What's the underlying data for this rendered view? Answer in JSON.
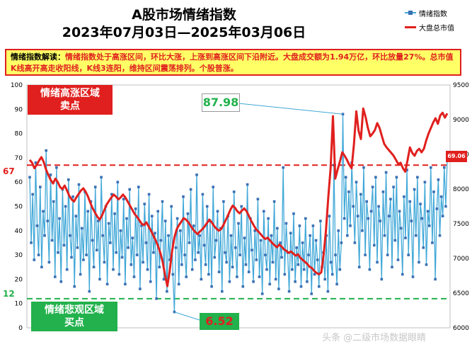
{
  "title_line1": "A股市场情绪指数",
  "title_line2": "2023年07月03日—2025年03月06日",
  "legend": {
    "series1": "情绪指数",
    "series2": "大盘总市值"
  },
  "interpretation": {
    "label": "情绪指数解读：",
    "text": "情绪指数处于高涨区间，环比大涨，上涨到高涨区间下沿附近。大盘成交额为1.94万亿，环比放量27%。总市值K线高开高走收阳线，K线3连阳，维持区间震荡排列。个股普涨。"
  },
  "zones": {
    "high_line1": "情绪高涨区域",
    "high_line2": "卖点",
    "low_line1": "情绪悲观区域",
    "low_line2": "买点"
  },
  "annotations": {
    "max": "87.98",
    "min": "6.52",
    "last": "69.06",
    "ref_high": "67",
    "ref_low": "12"
  },
  "watermark": "头条 @二级市场数据眼睛",
  "colors": {
    "sentiment": "#41a8d8",
    "marker": "#3a70b4",
    "marketcap": "#e0201e",
    "high_ref": "#e0201e",
    "low_ref": "#22b14c"
  },
  "chart_data": {
    "type": "line",
    "x_start": "2023-07-03",
    "x_end": "2025-03-06",
    "y_left": {
      "min": 0,
      "max": 100,
      "ticks": [
        "0",
        "10",
        "20",
        "30",
        "40",
        "50",
        "60",
        "70",
        "80",
        "90",
        "100"
      ]
    },
    "y_right": {
      "min": 6000,
      "max": 9500,
      "ticks": [
        "6000",
        "6500",
        "7000",
        "7500",
        "8000",
        "8500",
        "9000",
        "9500"
      ]
    },
    "reference_lines": [
      {
        "value": 67,
        "color": "#e0201e"
      },
      {
        "value": 12,
        "color": "#22b14c"
      }
    ],
    "series": [
      {
        "name": "情绪指数",
        "axis": "left",
        "values": [
          62,
          35,
          55,
          28,
          68,
          42,
          30,
          58,
          25,
          48,
          38,
          73,
          44,
          27,
          63,
          36,
          52,
          21,
          66,
          31,
          45,
          19,
          57,
          34,
          50,
          24,
          61,
          38,
          29,
          54,
          17,
          46,
          33,
          59,
          22,
          41,
          28,
          56,
          30,
          48,
          15,
          52,
          36,
          25,
          58,
          32,
          44,
          20,
          62,
          38,
          27,
          50,
          18,
          43,
          35,
          55,
          24,
          47,
          31,
          60,
          22,
          40,
          29,
          53,
          18,
          45,
          33,
          57,
          26,
          37,
          21,
          49,
          30,
          58,
          16,
          42,
          27,
          51,
          35,
          24,
          55,
          19,
          46,
          31,
          39,
          12,
          48,
          25,
          36,
          52,
          20,
          44,
          15,
          38,
          28,
          50,
          22,
          6.52,
          33,
          45,
          18,
          40,
          26,
          54,
          30,
          21,
          47,
          35,
          57,
          24,
          42,
          28,
          63,
          31,
          38,
          20,
          55,
          34,
          26,
          50,
          22,
          44,
          17,
          58,
          29,
          36,
          48,
          23,
          41,
          15,
          52,
          31,
          27,
          46,
          19,
          38,
          25,
          56,
          33,
          21,
          43,
          30,
          50,
          17,
          37,
          26,
          59,
          23,
          45,
          32,
          19,
          40,
          28,
          53,
          21,
          36,
          14,
          48,
          30,
          24,
          45,
          18,
          38,
          27,
          52,
          20,
          41,
          16,
          35,
          29,
          66,
          22,
          43,
          31,
          15,
          39,
          24,
          47,
          19,
          33,
          26,
          42,
          17,
          35,
          24,
          45,
          19,
          30,
          38,
          14,
          42,
          22,
          36,
          28,
          17,
          44,
          25,
          31,
          20,
          38,
          15,
          46,
          27,
          22,
          67,
          30,
          18,
          40,
          24,
          35,
          87.98,
          45,
          62,
          38,
          56,
          42,
          68,
          50,
          35,
          60,
          46,
          25,
          55,
          40,
          66,
          30,
          52,
          45,
          24,
          48,
          58,
          34,
          62,
          27,
          50,
          44,
          20,
          56,
          38,
          64,
          30,
          46,
          53,
          25,
          58,
          36,
          62,
          28,
          48,
          41,
          22,
          54,
          37,
          65,
          30,
          52,
          44,
          21,
          57,
          38,
          62,
          27,
          51,
          45,
          33,
          60,
          26,
          48,
          42,
          66,
          35,
          56,
          20,
          49,
          61,
          38,
          54,
          46,
          66,
          50,
          69.06
        ]
      },
      {
        "name": "大盘总市值",
        "axis": "right",
        "values": [
          8420,
          8380,
          8300,
          8350,
          8410,
          8460,
          8390,
          8280,
          8200,
          8130,
          8080,
          8150,
          8100,
          8030,
          8000,
          8050,
          7980,
          7900,
          7850,
          7820,
          7880,
          7930,
          7980,
          8010,
          7960,
          7890,
          7800,
          7720,
          7660,
          7600,
          7560,
          7620,
          7700,
          7780,
          7830,
          7880,
          7920,
          7890,
          7850,
          7880,
          7920,
          7880,
          7820,
          7760,
          7700,
          7640,
          7600,
          7550,
          7500,
          7480,
          7520,
          7460,
          7400,
          7330,
          7260,
          7180,
          7080,
          6950,
          6760,
          6600,
          6820,
          7100,
          7300,
          7420,
          7480,
          7530,
          7580,
          7560,
          7520,
          7470,
          7420,
          7380,
          7350,
          7390,
          7420,
          7460,
          7510,
          7560,
          7520,
          7470,
          7430,
          7400,
          7420,
          7480,
          7550,
          7620,
          7700,
          7760,
          7730,
          7680,
          7650,
          7690,
          7720,
          7680,
          7610,
          7540,
          7480,
          7420,
          7390,
          7350,
          7310,
          7280,
          7300,
          7260,
          7220,
          7190,
          7160,
          7200,
          7170,
          7130,
          7110,
          7080,
          7100,
          7070,
          7040,
          7060,
          7010,
          6980,
          6950,
          6920,
          6880,
          6860,
          6820,
          6790,
          6770,
          6800,
          7050,
          7400,
          7880,
          8300,
          9050,
          8150,
          8280,
          8400,
          8530,
          8480,
          8420,
          8350,
          8300,
          8650,
          9120,
          8840,
          8720,
          9160,
          9040,
          8880,
          8760,
          8800,
          8850,
          8950,
          8880,
          8760,
          8650,
          8600,
          8560,
          8520,
          8480,
          8420,
          8360,
          8380,
          8300,
          8250,
          8420,
          8600,
          8520,
          8480,
          8550,
          8580,
          8530,
          8580,
          8700,
          8800,
          8880,
          8960,
          9020,
          8940,
          9060,
          9100,
          9030,
          9090
        ]
      }
    ]
  }
}
